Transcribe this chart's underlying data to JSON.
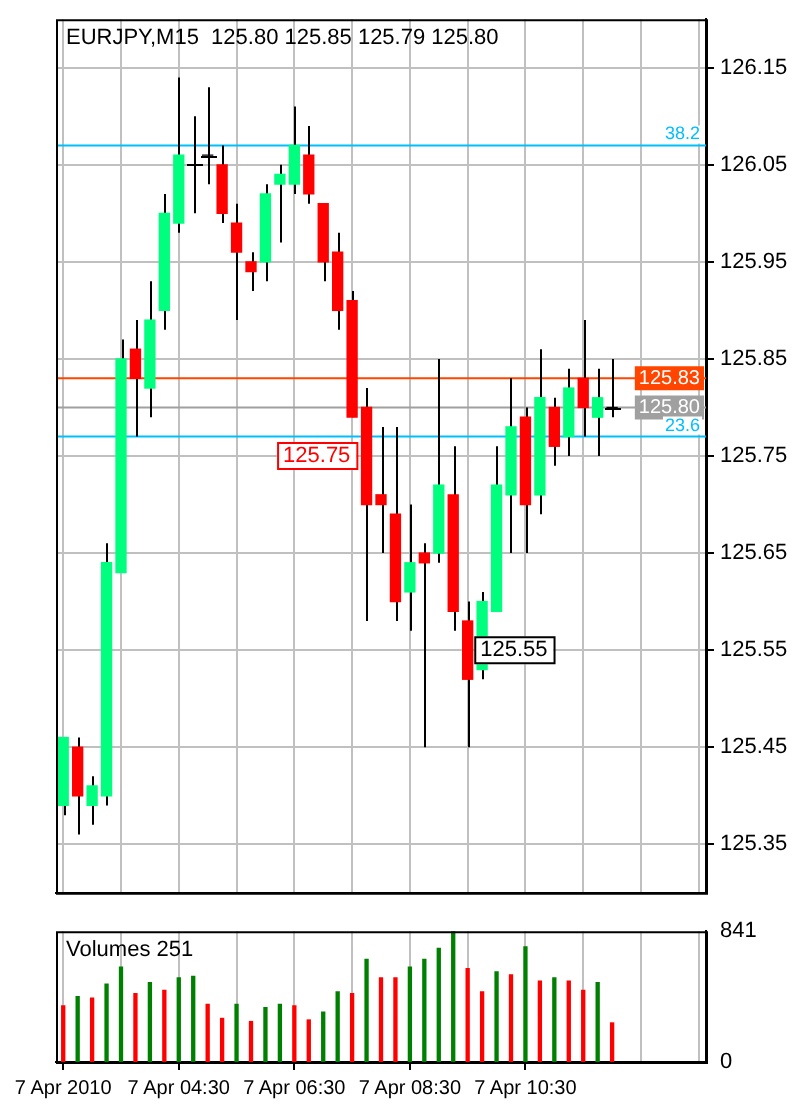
{
  "chart_data": [
    {
      "type": "candlestick",
      "title": "EURJPY,M15  125.80 125.85 125.79 125.80",
      "categories": [
        null,
        null,
        null,
        null,
        null,
        null,
        null,
        null,
        null,
        null,
        null,
        null,
        null,
        null,
        null,
        null,
        null,
        null,
        null,
        null,
        null,
        null,
        null,
        null,
        null,
        null,
        null,
        null,
        null,
        null,
        null,
        null,
        null,
        null,
        null,
        null,
        null,
        null,
        null
      ],
      "ohlc": [
        [
          125.39,
          125.46,
          125.38,
          125.46
        ],
        [
          125.45,
          125.46,
          125.36,
          125.4
        ],
        [
          125.39,
          125.42,
          125.37,
          125.41
        ],
        [
          125.4,
          125.66,
          125.39,
          125.64
        ],
        [
          125.63,
          125.87,
          125.63,
          125.85
        ],
        [
          125.86,
          125.89,
          125.77,
          125.83
        ],
        [
          125.82,
          125.93,
          125.79,
          125.89
        ],
        [
          125.9,
          126.02,
          125.88,
          126.0
        ],
        [
          125.99,
          126.14,
          125.98,
          126.06
        ],
        [
          126.05,
          126.1,
          126.0,
          126.05
        ],
        [
          126.06,
          126.13,
          126.03,
          126.06
        ],
        [
          126.05,
          126.07,
          125.99,
          126.0
        ],
        [
          125.99,
          126.01,
          125.89,
          125.96
        ],
        [
          125.95,
          125.96,
          125.92,
          125.94
        ],
        [
          125.95,
          126.03,
          125.93,
          126.02
        ],
        [
          126.03,
          126.05,
          125.97,
          126.04
        ],
        [
          126.03,
          126.11,
          126.02,
          126.07
        ],
        [
          126.06,
          126.09,
          126.01,
          126.02
        ],
        [
          126.01,
          126.01,
          125.93,
          125.95
        ],
        [
          125.96,
          125.98,
          125.88,
          125.9
        ],
        [
          125.91,
          125.92,
          125.79,
          125.79
        ],
        [
          125.8,
          125.82,
          125.58,
          125.7
        ],
        [
          125.71,
          125.78,
          125.65,
          125.7
        ],
        [
          125.69,
          125.78,
          125.58,
          125.6
        ],
        [
          125.61,
          125.7,
          125.57,
          125.64
        ],
        [
          125.65,
          125.66,
          125.45,
          125.64
        ],
        [
          125.65,
          125.85,
          125.64,
          125.72
        ],
        [
          125.71,
          125.76,
          125.57,
          125.59
        ],
        [
          125.58,
          125.6,
          125.45,
          125.52
        ],
        [
          125.53,
          125.61,
          125.52,
          125.6
        ],
        [
          125.59,
          125.76,
          125.59,
          125.72
        ],
        [
          125.71,
          125.83,
          125.65,
          125.78
        ],
        [
          125.79,
          125.8,
          125.65,
          125.7
        ],
        [
          125.71,
          125.86,
          125.69,
          125.81
        ],
        [
          125.8,
          125.81,
          125.74,
          125.76
        ],
        [
          125.77,
          125.84,
          125.75,
          125.82
        ],
        [
          125.83,
          125.89,
          125.77,
          125.8
        ],
        [
          125.79,
          125.84,
          125.75,
          125.81
        ],
        [
          125.8,
          125.85,
          125.79,
          125.8
        ]
      ],
      "colors": [
        "#00ff7f",
        "#ff0000",
        "#00ff7f",
        "#00ff7f",
        "#00ff7f",
        "#ff0000",
        "#00ff7f",
        "#00ff7f",
        "#00ff7f",
        "#000000",
        "#000000",
        "#ff0000",
        "#ff0000",
        "#ff0000",
        "#00ff7f",
        "#00ff7f",
        "#00ff7f",
        "#ff0000",
        "#ff0000",
        "#ff0000",
        "#ff0000",
        "#ff0000",
        "#ff0000",
        "#ff0000",
        "#00ff7f",
        "#ff0000",
        "#00ff7f",
        "#ff0000",
        "#ff0000",
        "#00ff7f",
        "#00ff7f",
        "#00ff7f",
        "#ff0000",
        "#00ff7f",
        "#ff0000",
        "#00ff7f",
        "#ff0000",
        "#00ff7f",
        "#000000"
      ],
      "ylim": [
        125.3,
        126.2
      ],
      "yticks": [
        125.35,
        125.45,
        125.55,
        125.65,
        125.75,
        125.85,
        125.95,
        126.05,
        126.15
      ],
      "grid": true,
      "tick_labels": "y",
      "ref_lines": [
        {
          "axis": "y",
          "value": 126.07,
          "color": "#00bfff"
        },
        {
          "axis": "y",
          "value": 125.83,
          "label": "125.83",
          "color": "#ff4500"
        },
        {
          "axis": "y",
          "value": 125.8,
          "label": "125.80",
          "color": "#a0a0a0"
        },
        {
          "axis": "y",
          "value": 125.77,
          "color": "#00bfff"
        }
      ],
      "annotations": [
        {
          "text": "38.2",
          "y": 126.07
        },
        {
          "text": "23.6",
          "y": 125.77
        },
        {
          "text": "125.75",
          "y": 125.75
        },
        {
          "text": "125.55",
          "y": 125.55
        }
      ]
    },
    {
      "type": "bar",
      "title": "Volumes 251",
      "categories": [
        "7 Apr 2010",
        null,
        null,
        null,
        null,
        null,
        null,
        null,
        "7 Apr 04:30",
        null,
        null,
        null,
        null,
        null,
        null,
        null,
        "7 Apr 06:30",
        null,
        null,
        null,
        null,
        null,
        null,
        null,
        "7 Apr 08:30",
        null,
        null,
        null,
        null,
        null,
        null,
        null,
        "7 Apr 10:30",
        null,
        null,
        null,
        null,
        null,
        null
      ],
      "values": [
        360,
        420,
        410,
        500,
        610,
        440,
        510,
        460,
        540,
        550,
        370,
        280,
        370,
        260,
        350,
        370,
        360,
        270,
        320,
        450,
        440,
        660,
        540,
        540,
        610,
        660,
        730,
        841,
        600,
        450,
        580,
        560,
        740,
        520,
        540,
        520,
        460,
        510,
        251
      ],
      "colors": [
        "#ff0000",
        "#008000",
        "#ff0000",
        "#008000",
        "#008000",
        "#ff0000",
        "#008000",
        "#ff0000",
        "#008000",
        "#008000",
        "#ff0000",
        "#ff0000",
        "#008000",
        "#ff0000",
        "#008000",
        "#008000",
        "#ff0000",
        "#ff0000",
        "#008000",
        "#008000",
        "#ff0000",
        "#008000",
        "#ff0000",
        "#ff0000",
        "#008000",
        "#008000",
        "#008000",
        "#008000",
        "#ff0000",
        "#ff0000",
        "#008000",
        "#ff0000",
        "#008000",
        "#ff0000",
        "#008000",
        "#ff0000",
        "#ff0000",
        "#008000",
        "#ff0000"
      ],
      "ylim": [
        0,
        841
      ],
      "yticks": [
        0,
        841
      ],
      "grid": "x"
    }
  ]
}
